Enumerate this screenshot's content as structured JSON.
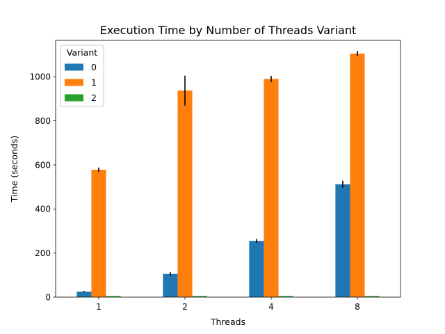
{
  "chart_data": {
    "type": "bar",
    "title": "Execution Time by Number of Threads Variant",
    "xlabel": "Threads",
    "ylabel": "Time (seconds)",
    "categories": [
      "1",
      "2",
      "4",
      "8"
    ],
    "ylim": [
      0,
      1165
    ],
    "yticks": [
      0,
      200,
      400,
      600,
      800,
      1000
    ],
    "legend": {
      "title": "Variant",
      "placement": "top-left"
    },
    "series": [
      {
        "name": "0",
        "color": "#1f77b4",
        "values": [
          25,
          105,
          255,
          512
        ],
        "errors": [
          3,
          8,
          9,
          16
        ]
      },
      {
        "name": "1",
        "color": "#ff7f0e",
        "values": [
          578,
          937,
          990,
          1105
        ],
        "errors": [
          10,
          68,
          14,
          12
        ]
      },
      {
        "name": "2",
        "color": "#2ca02c",
        "values": [
          5,
          5,
          5,
          5
        ],
        "errors": [
          0,
          0,
          0,
          0
        ]
      }
    ],
    "grid": false
  }
}
